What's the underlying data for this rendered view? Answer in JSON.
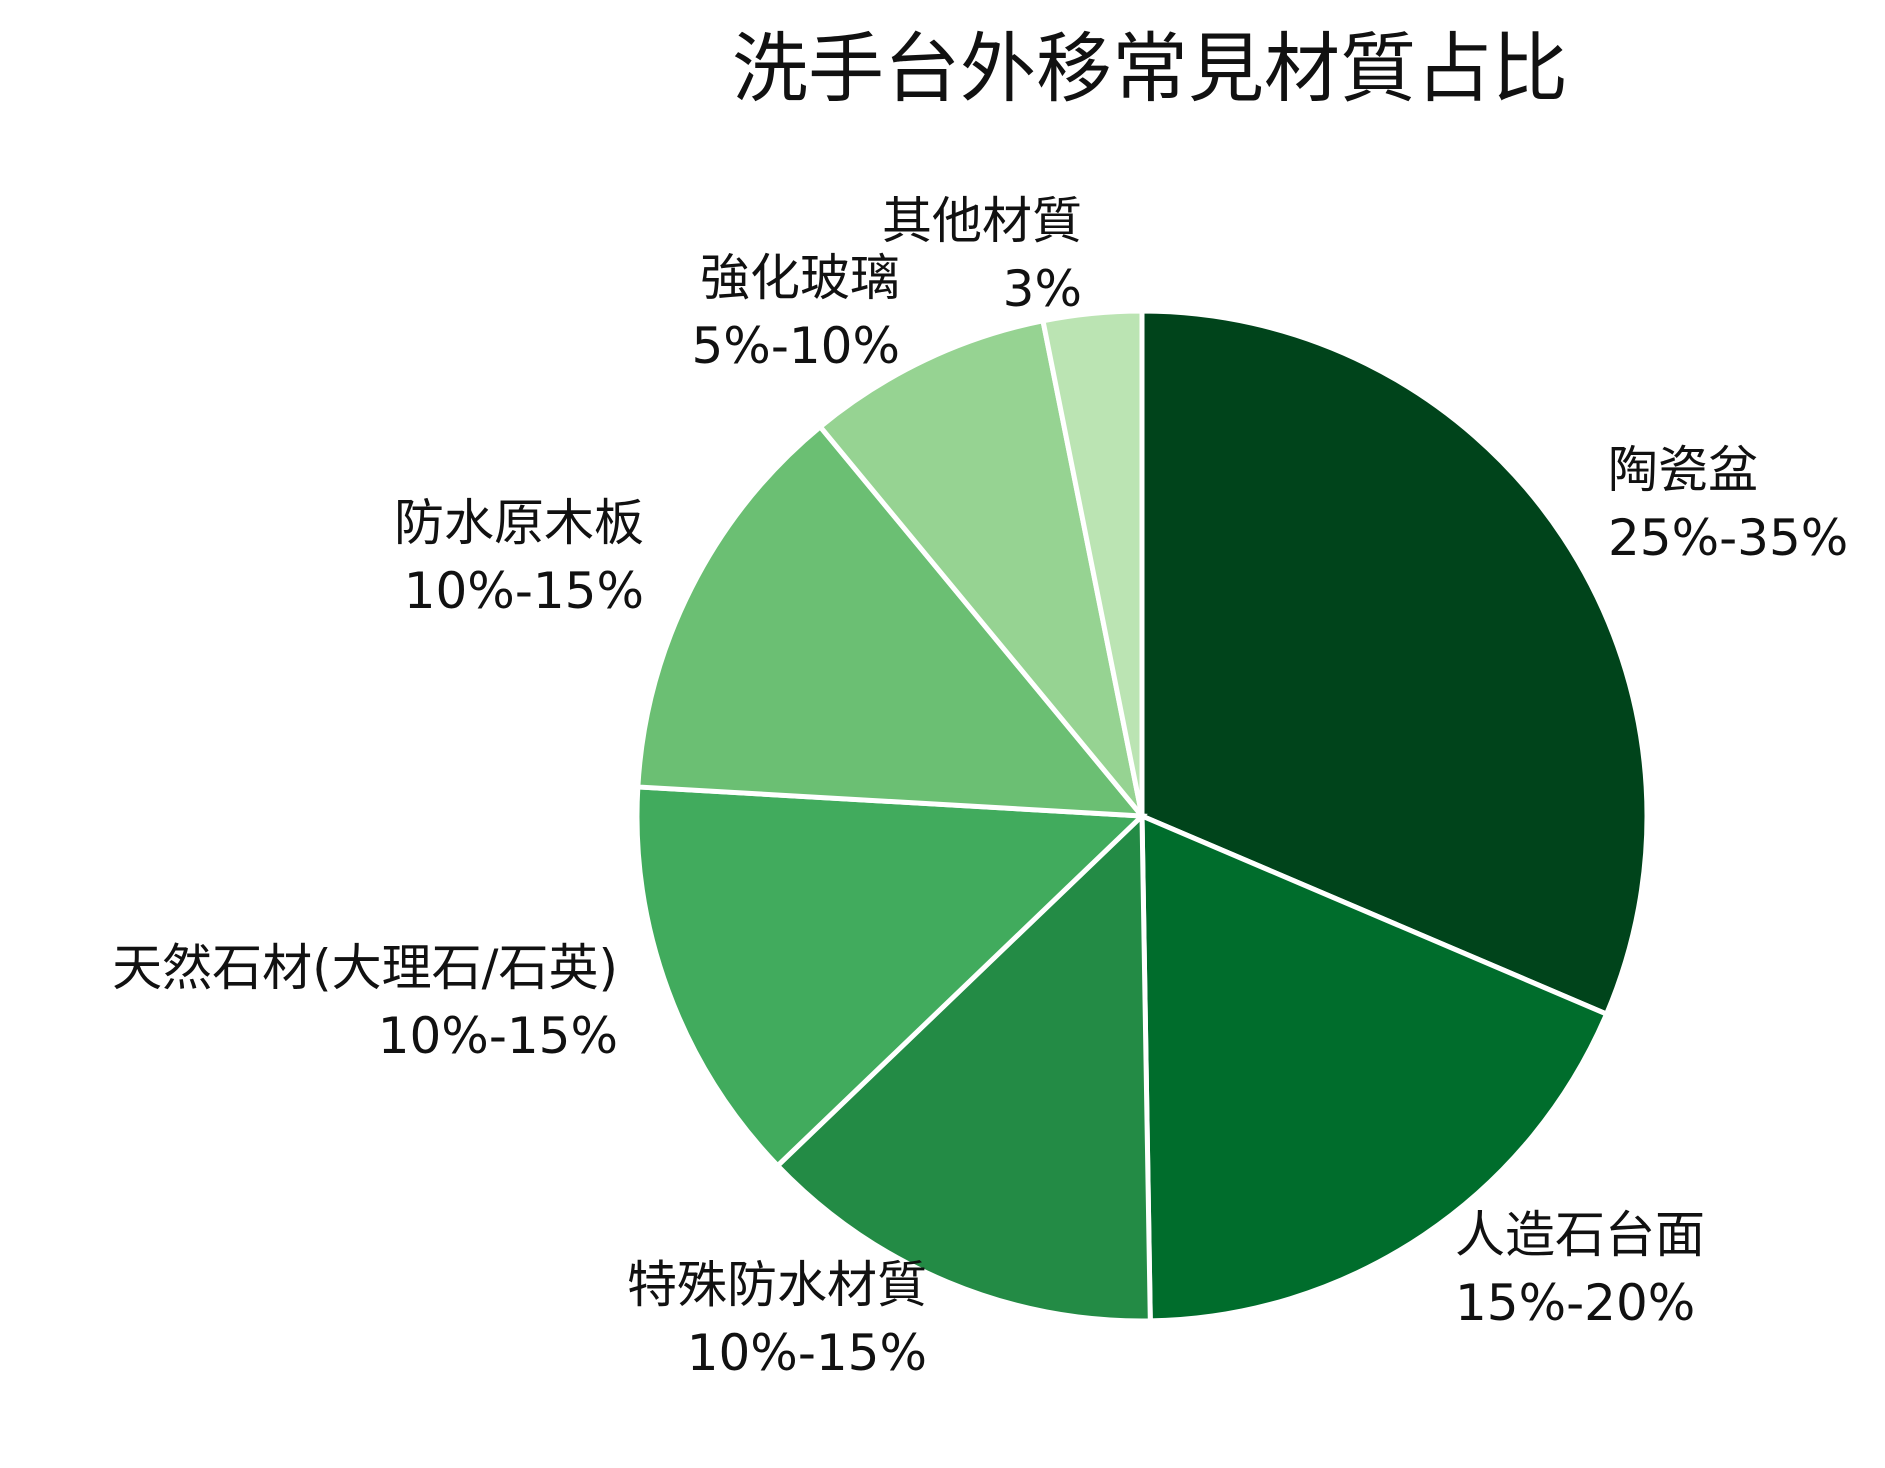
{
  "chart_data": {
    "type": "pie",
    "title": "洗手台外移常見材質占比",
    "start_angle": "12 o'clock",
    "direction": "clockwise",
    "slices": [
      {
        "label": "陶瓷盆",
        "range_text": "25%-35%",
        "value": 30,
        "color": "#00441b"
      },
      {
        "label": "人造石台面",
        "range_text": "15%-20%",
        "value": 17.5,
        "color": "#006d2c"
      },
      {
        "label": "特殊防水材質",
        "range_text": "10%-15%",
        "value": 12.5,
        "color": "#238b45"
      },
      {
        "label": "天然石材(大理石/石英)",
        "range_text": "10%-15%",
        "value": 12.5,
        "color": "#41ab5d"
      },
      {
        "label": "防水原木板",
        "range_text": "10%-15%",
        "value": 12.5,
        "color": "#6bbf73"
      },
      {
        "label": "強化玻璃",
        "range_text": "5%-10%",
        "value": 7.5,
        "color": "#96d392"
      },
      {
        "label": "其他材質",
        "range_text": "3%",
        "value": 3,
        "color": "#bbe4b3"
      }
    ]
  }
}
